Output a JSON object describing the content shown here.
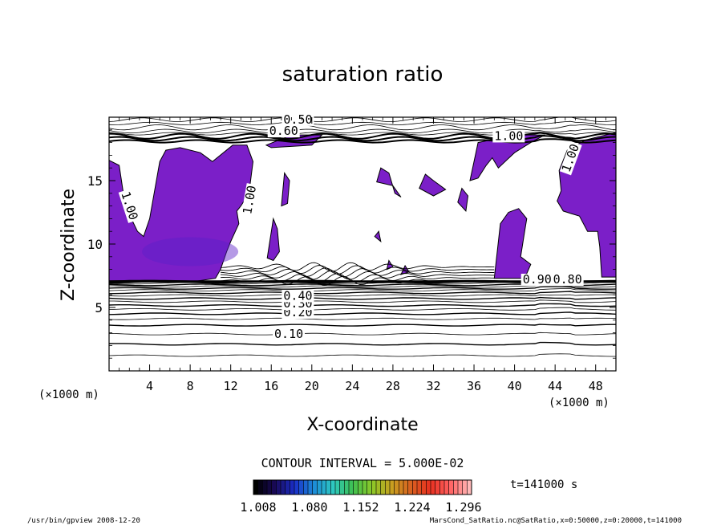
{
  "chart_data": {
    "type": "contour",
    "title": "saturation ratio",
    "xlabel": "X-coordinate",
    "ylabel": "Z-coordinate",
    "x_unit": "(×1000 m)",
    "y_unit": "(×1000 m)",
    "xlim": [
      0,
      50
    ],
    "ylim": [
      0,
      20
    ],
    "x_ticks": [
      4,
      8,
      12,
      16,
      20,
      24,
      28,
      32,
      36,
      40,
      44,
      48
    ],
    "y_ticks": [
      5,
      10,
      15
    ],
    "contour_interval_text": "CONTOUR INTERVAL = 5.000E-02",
    "time_label": "t=141000 s",
    "contour_labels": [
      "0.50",
      "0.60",
      "1.00",
      "1.00",
      "1.00",
      "1.00",
      "0.10",
      "0.20",
      "0.30",
      "0.40",
      "0.90",
      "0.80"
    ],
    "colorbar": {
      "tick_labels": [
        "1.008",
        "1.080",
        "1.152",
        "1.224",
        "1.296"
      ],
      "colors": [
        "#000000",
        "#1a0a5a",
        "#1a2ec8",
        "#1c8cd8",
        "#2ec8c0",
        "#3ec050",
        "#8cc828",
        "#c8a020",
        "#d86020",
        "#e83020",
        "#ff6060",
        "#ffb8b8"
      ]
    },
    "fill_color": "#7b1fc8",
    "footer_left": "/usr/bin/gpview  2008-12-20",
    "footer_right": "MarsCond_SatRatio.nc@SatRatio,x=0:50000,z=0:20000,t=141000"
  }
}
